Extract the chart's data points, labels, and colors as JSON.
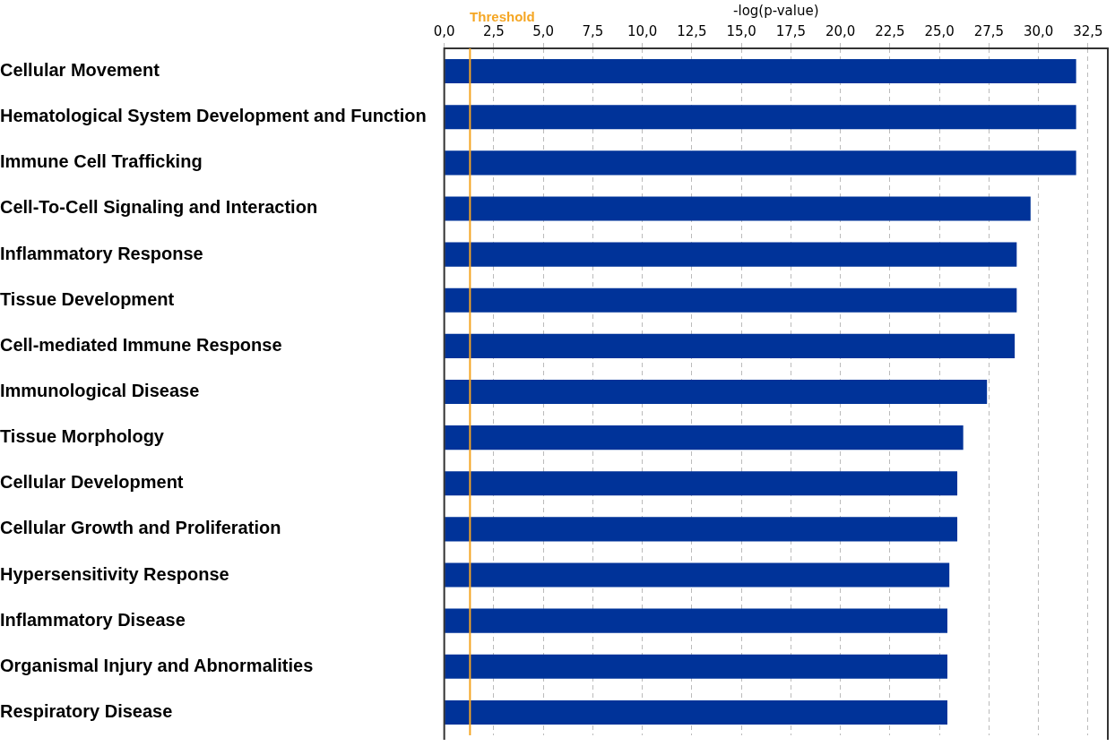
{
  "chart_data": {
    "type": "bar",
    "orientation": "horizontal",
    "xlabel": "-log(p-value)",
    "categories": [
      "Cellular Movement",
      "Hematological System Development and Function",
      "Immune Cell Trafficking",
      "Cell-To-Cell Signaling and Interaction",
      "Inflammatory Response",
      "Tissue Development",
      "Cell-mediated Immune Response",
      "Immunological Disease",
      "Tissue Morphology",
      "Cellular Development",
      "Cellular Growth and Proliferation",
      "Hypersensitivity Response",
      "Inflammatory Disease",
      "Organismal Injury and Abnormalities",
      "Respiratory Disease"
    ],
    "values": [
      31.9,
      31.9,
      31.9,
      29.6,
      28.9,
      28.9,
      28.8,
      27.4,
      26.2,
      25.9,
      25.9,
      25.5,
      25.4,
      25.4,
      25.4
    ],
    "color": "#003399",
    "xlim": [
      0,
      33.5
    ],
    "xticks": [
      {
        "value": 0,
        "label": "0,0"
      },
      {
        "value": 2.5,
        "label": "2,5"
      },
      {
        "value": 5,
        "label": "5,0"
      },
      {
        "value": 7.5,
        "label": "7,5"
      },
      {
        "value": 10,
        "label": "10,0"
      },
      {
        "value": 12.5,
        "label": "12,5"
      },
      {
        "value": 15,
        "label": "15,0"
      },
      {
        "value": 17.5,
        "label": "17,5"
      },
      {
        "value": 20,
        "label": "20,0"
      },
      {
        "value": 22.5,
        "label": "22,5"
      },
      {
        "value": 25,
        "label": "25,0"
      },
      {
        "value": 27.5,
        "label": "27,5"
      },
      {
        "value": 30,
        "label": "30,0"
      },
      {
        "value": 32.5,
        "label": "32,5"
      }
    ],
    "ref_lines": [
      {
        "axis": "x",
        "value": 1.3,
        "label": "Threshold",
        "color": "#f5a623"
      }
    ],
    "grid": "x",
    "legend": false
  }
}
